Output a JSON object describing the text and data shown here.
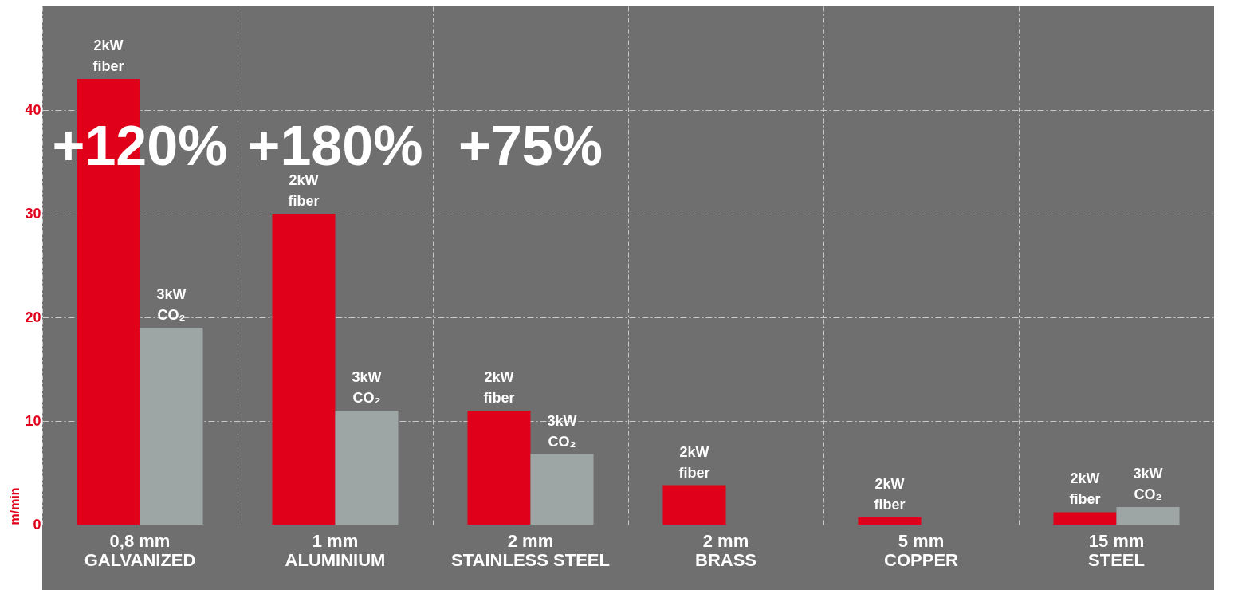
{
  "chart_data": {
    "type": "bar",
    "ylabel": "m/min",
    "categories": [
      "0,8 mm\nGALVANIZED",
      "1 mm\nALUMINIUM",
      "2 mm\nSTAINLESS STEEL",
      "2 mm\nBRASS",
      "5 mm\nCOPPER",
      "15 mm\nSTEEL"
    ],
    "series": [
      {
        "name": "2kW fiber",
        "color": "#e0001a",
        "values": [
          43,
          30,
          11,
          3.8,
          0.7,
          1.2
        ]
      },
      {
        "name": "3kW CO₂",
        "color": "#9ea5a5",
        "values": [
          19,
          11,
          6.8,
          null,
          null,
          1.7
        ]
      }
    ],
    "ylim": [
      0,
      50
    ],
    "yticks": [
      0,
      10,
      20,
      30,
      40
    ],
    "grid": true,
    "annotations": [
      "+120%",
      "+180%",
      "+75%"
    ]
  }
}
